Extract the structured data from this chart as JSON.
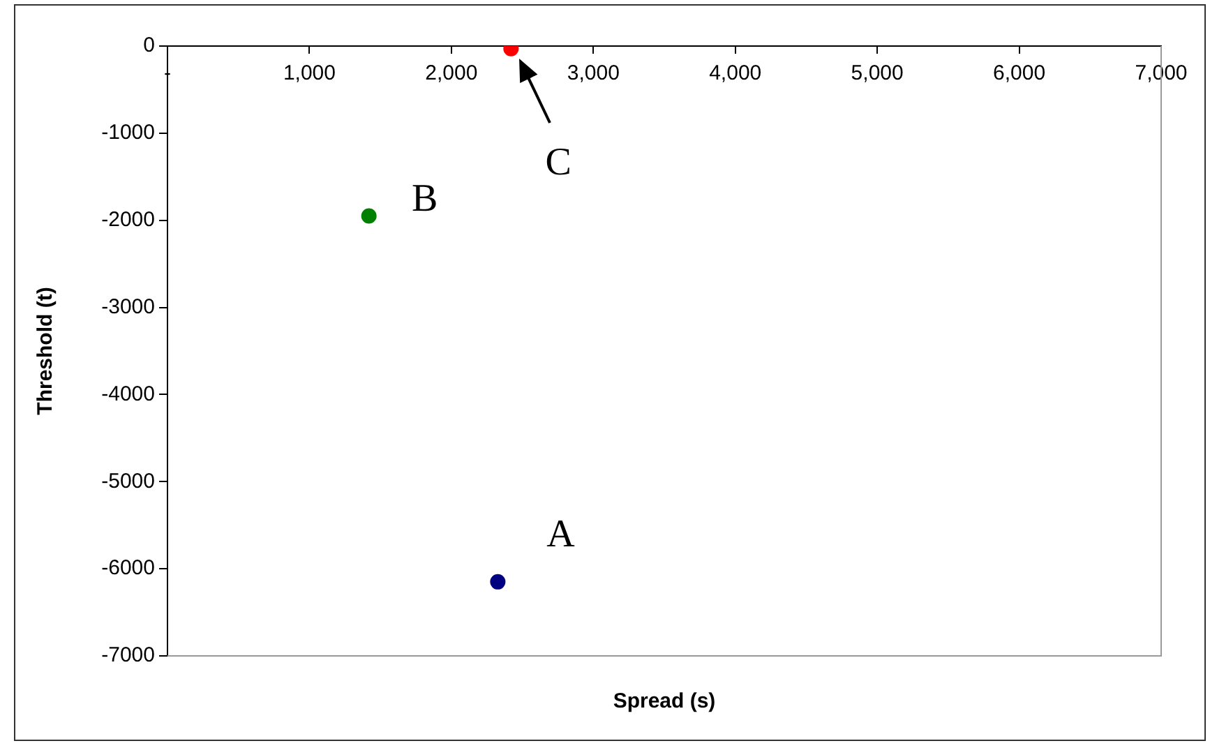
{
  "chart_data": {
    "type": "scatter",
    "xlabel": "Spread (s)",
    "ylabel": "Threshold (t)",
    "series": [
      {
        "x": [
          2327,
          1419,
          2420
        ],
        "values": [
          -6150,
          -1950,
          -30
        ],
        "colors": [
          "#000080",
          "#008000",
          "#ff0000"
        ]
      }
    ],
    "xlim": [
      0,
      7000
    ],
    "xticks": [
      {
        "value": 0,
        "label": "-"
      },
      {
        "value": 1000,
        "label": "1,000"
      },
      {
        "value": 2000,
        "label": "2,000"
      },
      {
        "value": 3000,
        "label": "3,000"
      },
      {
        "value": 4000,
        "label": "4,000"
      },
      {
        "value": 5000,
        "label": "5,000"
      },
      {
        "value": 6000,
        "label": "6,000"
      },
      {
        "value": 7000,
        "label": "7,000"
      }
    ],
    "ylim": [
      -7000,
      0
    ],
    "yticks": [
      0,
      -1000,
      -2000,
      -3000,
      -4000,
      -5000,
      -6000,
      -7000
    ],
    "annotations": [
      {
        "text": "A",
        "x": 2327,
        "y": -6150
      },
      {
        "text": "B",
        "x": 1419,
        "y": -1950
      },
      {
        "text": "C",
        "x": 2420,
        "y": -30
      }
    ],
    "grid": false,
    "legend": false,
    "marker": "circle"
  }
}
